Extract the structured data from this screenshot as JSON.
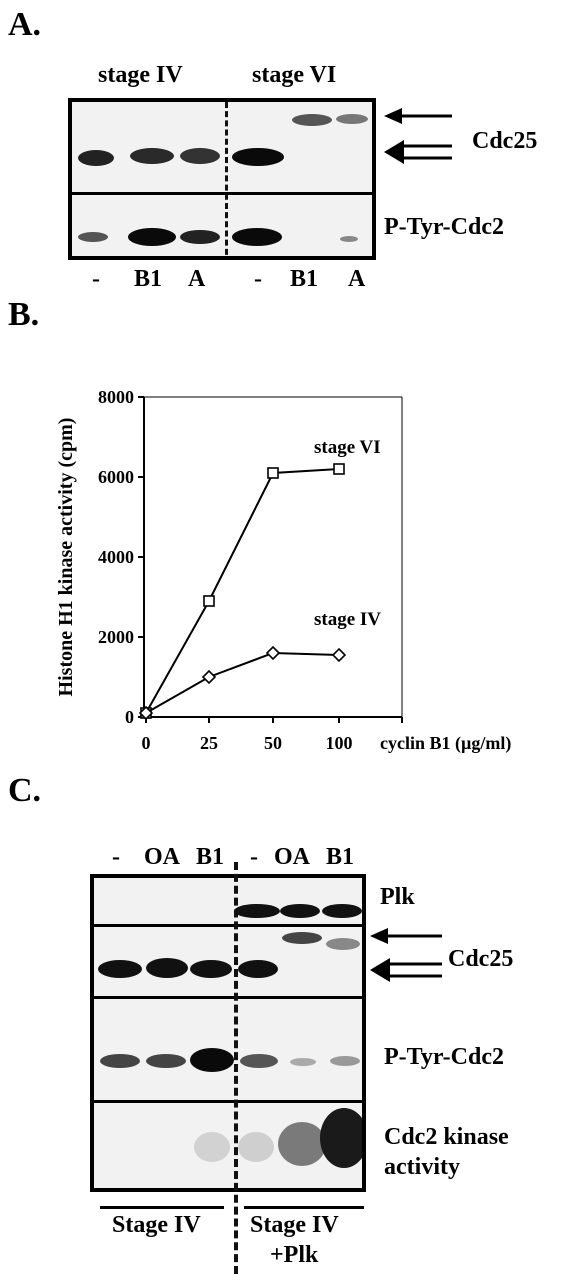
{
  "panelA": {
    "letter": "A.",
    "stage_left": "stage IV",
    "stage_right": "stage VI",
    "row_labels": [
      "Cdc25",
      "P-Tyr-Cdc2"
    ],
    "lane_labels": [
      "-",
      "B1",
      "A",
      "-",
      "B1",
      "A"
    ]
  },
  "panelB": {
    "letter": "B.",
    "chart_data": {
      "type": "line",
      "ylabel": "Histone H1 kinase activity (cpm)",
      "xlabel": "cyclin B1 (µg/ml)",
      "categories": [
        "0",
        "25",
        "50",
        "100"
      ],
      "ylim": [
        0,
        8000
      ],
      "yticks": [
        "0",
        "2000",
        "4000",
        "6000",
        "8000"
      ],
      "grid": false,
      "series": [
        {
          "name": "stage VI",
          "marker": "square",
          "values": [
            100,
            2900,
            6100,
            6200
          ]
        },
        {
          "name": "stage IV",
          "marker": "diamond",
          "values": [
            100,
            1000,
            1600,
            1550
          ]
        }
      ]
    }
  },
  "panelC": {
    "letter": "C.",
    "lane_labels": [
      "-",
      "OA",
      "B1",
      "-",
      "OA",
      "B1"
    ],
    "row_labels": [
      "Plk",
      "Cdc25",
      "P-Tyr-Cdc2",
      "Cdc2 kinase",
      "activity"
    ],
    "bottom_left": "Stage IV",
    "bottom_right_1": "Stage IV",
    "bottom_right_2": "+Plk"
  }
}
